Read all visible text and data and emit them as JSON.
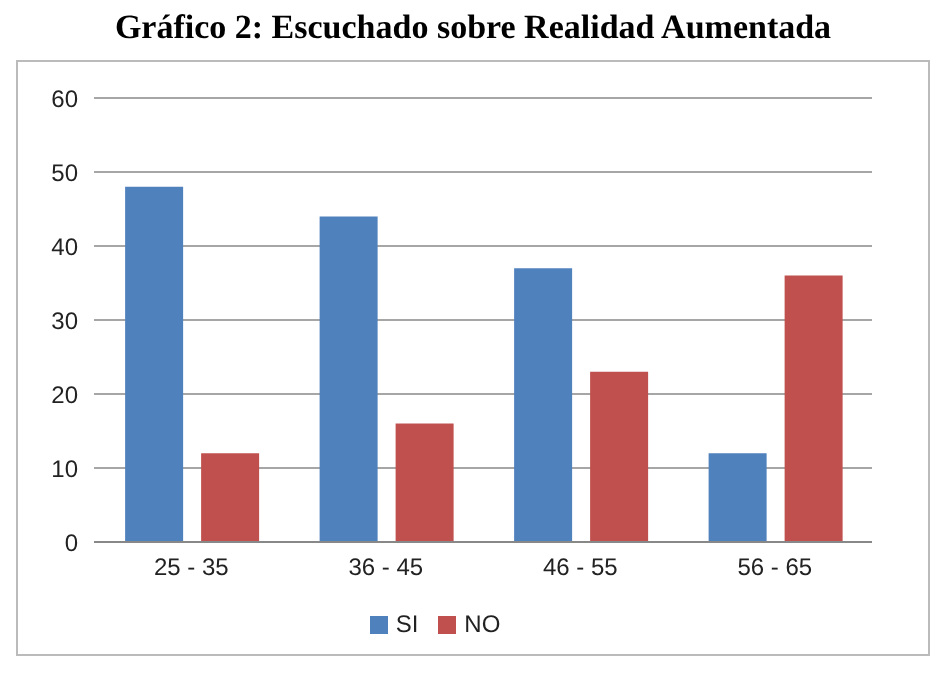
{
  "chart_data": {
    "type": "bar",
    "title": "Gráfico 2: Escuchado sobre Realidad Aumentada",
    "categories": [
      "25 - 35",
      "36 - 45",
      "46 - 55",
      "56 -  65"
    ],
    "series": [
      {
        "name": "SI",
        "color": "#4f81bd",
        "values": [
          48,
          44,
          37,
          12
        ]
      },
      {
        "name": "NO",
        "color": "#c0504d",
        "values": [
          12,
          16,
          23,
          36
        ]
      }
    ],
    "ylim": [
      0,
      60
    ],
    "yticks": [
      0,
      10,
      20,
      30,
      40,
      50,
      60
    ],
    "grid": "y",
    "legend": "bottom"
  }
}
